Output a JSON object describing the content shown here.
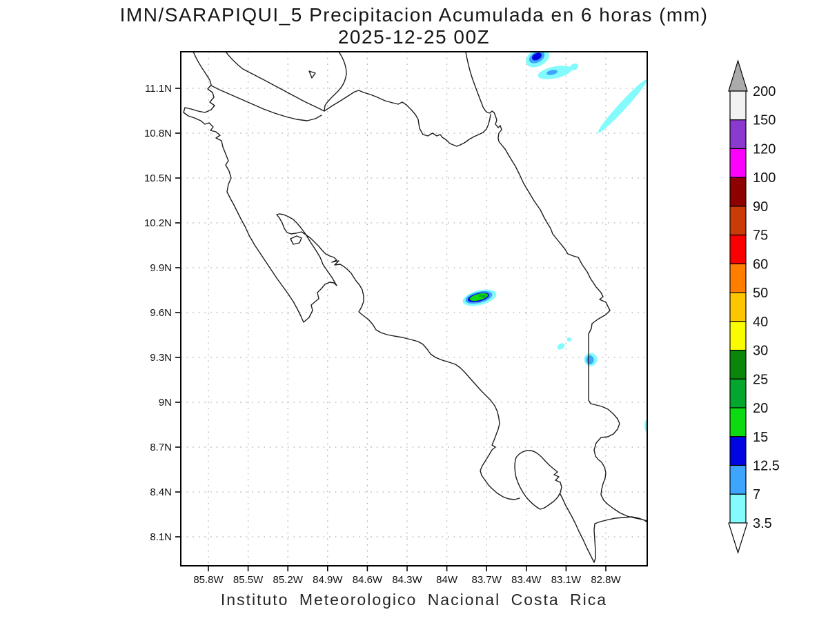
{
  "title": {
    "line1": "IMN/SARAPIQUI_5 Precipitacion Acumulada en 6 horas (mm)",
    "line2": "2025-12-25 00Z"
  },
  "caption": "Instituto Meteorologico Nacional Costa Rica",
  "axes": {
    "lat_labels": [
      "11.1N",
      "10.8N",
      "10.5N",
      "10.2N",
      "9.9N",
      "9.6N",
      "9.3N",
      "9N",
      "8.7N",
      "8.4N",
      "8.1N"
    ],
    "lon_labels": [
      "85.8W",
      "85.5W",
      "85.2W",
      "84.9W",
      "84.6W",
      "84.3W",
      "84W",
      "83.7W",
      "83.4W",
      "83.1W",
      "82.8W"
    ]
  },
  "colorbar": {
    "levels": [
      "200",
      "150",
      "120",
      "100",
      "90",
      "75",
      "60",
      "50",
      "40",
      "30",
      "25",
      "20",
      "15",
      "12.5",
      "7",
      "3.5"
    ],
    "band_colors": [
      "#f2f2f2",
      "#8b3ad0",
      "#fb02fb",
      "#8f0000",
      "#c93c06",
      "#fb0000",
      "#ff7e00",
      "#fec601",
      "#fbfb00",
      "#0a860a",
      "#04a72e",
      "#0bdb10",
      "#0105e2",
      "#3ea5fe",
      "#83fbfc"
    ],
    "arrow_top_color": "#ababab",
    "arrow_bottom_color": "#ffffff",
    "units": "mm"
  },
  "map_data": {
    "region": {
      "west": "86.0W",
      "east": "82.5W",
      "south": "7.9N",
      "north": "11.35N"
    },
    "grid_interval_deg": 0.3,
    "precip_features": [
      {
        "name": "cell-north-coast",
        "lon": "83.32W",
        "lat": "11.30N",
        "max_band_mm": "12.5-15"
      },
      {
        "name": "cell-north-offshore",
        "lon": "83.19W",
        "lat": "11.21N",
        "max_band_mm": "7-12.5"
      },
      {
        "name": "spot-north-offshore",
        "lon": "83.04W",
        "lat": "11.24N",
        "max_band_mm": "3.5-7"
      },
      {
        "name": "streak-caribbean-offshore",
        "lon": "82.68W",
        "lat": "10.98N",
        "max_band_mm": "3.5-7"
      },
      {
        "name": "cell-central-mountains",
        "lon": "83.75W",
        "lat": "9.70N",
        "max_band_mm": "20-25"
      },
      {
        "name": "dots-inland-limon",
        "lon": "83.14W",
        "lat": "9.37N",
        "max_band_mm": "3.5-7"
      },
      {
        "name": "cell-limon-coast",
        "lon": "82.91W",
        "lat": "9.29N",
        "max_band_mm": "7-12.5"
      },
      {
        "name": "sliver-east-edge",
        "lon": "82.49W",
        "lat": "8.84N",
        "max_band_mm": "3.5-7"
      }
    ]
  }
}
